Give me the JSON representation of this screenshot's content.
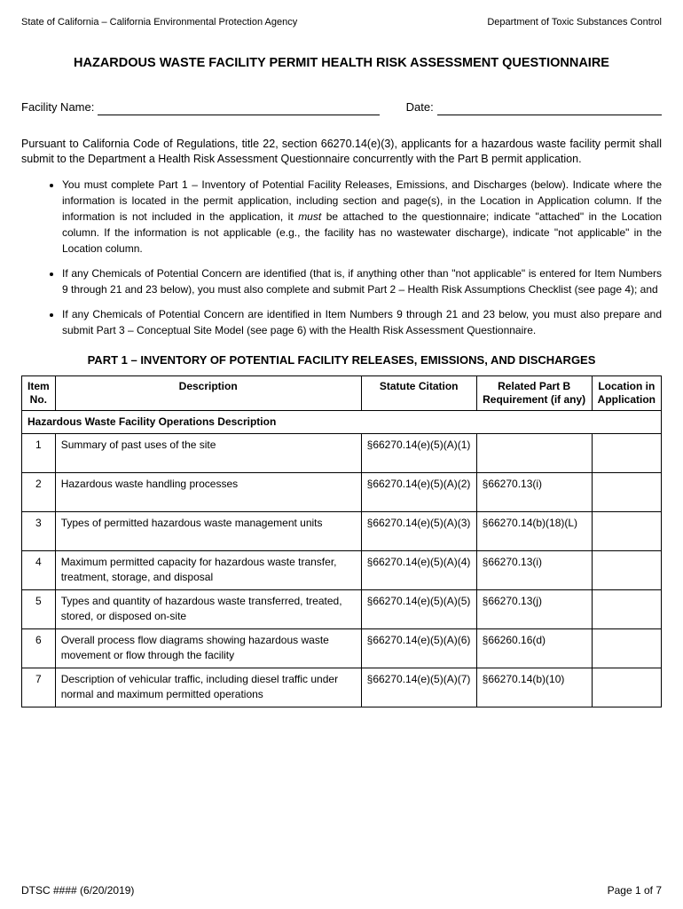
{
  "header": {
    "left": "State of California – California Environmental Protection Agency",
    "right": "Department of Toxic Substances Control"
  },
  "title": "HAZARDOUS WASTE FACILITY PERMIT HEALTH RISK ASSESSMENT QUESTIONNAIRE",
  "fields": {
    "facility_label": "Facility Name:",
    "date_label": "Date:"
  },
  "intro": "Pursuant to California Code of Regulations, title 22, section 66270.14(e)(3), applicants for a hazardous waste facility permit shall submit to the Department a Health Risk Assessment Questionnaire concurrently with the Part B permit application.",
  "bullets": [
    {
      "pre": "You must complete Part 1 – Inventory of Potential Facility Releases, Emissions, and Discharges (below). Indicate where the information is located in the permit application, including section and page(s), in the Location in Application column. If the information is not included in the application, it ",
      "italic": "must",
      "post": " be attached to the questionnaire; indicate \"attached\" in the Location column. If the information is not applicable (e.g., the facility has no wastewater discharge), indicate \"not applicable\" in the Location column."
    },
    {
      "pre": "If any Chemicals of Potential Concern are identified (that is, if anything other than \"not applicable\" is entered for Item Numbers 9 through 21 and 23 below), you must also complete and submit Part 2 – Health Risk Assumptions Checklist (see page 4); and",
      "italic": "",
      "post": ""
    },
    {
      "pre": "If any Chemicals of Potential Concern are identified in Item Numbers 9 through 21 and 23 below, you must also prepare and submit Part 3 – Conceptual Site Model (see page 6) with the Health Risk Assessment Questionnaire.",
      "italic": "",
      "post": ""
    }
  ],
  "part_title": "PART 1 – INVENTORY OF POTENTIAL FACILITY RELEASES, EMISSIONS, AND DISCHARGES",
  "table": {
    "columns": {
      "item": "Item\nNo.",
      "desc": "Description",
      "statute": "Statute Citation",
      "req": "Related Part B\nRequirement (if any)",
      "loc": "Location in\nApplication"
    },
    "section": "Hazardous Waste Facility Operations Description",
    "rows": [
      {
        "n": "1",
        "desc": "Summary of past uses of the site",
        "stat": "§66270.14(e)(5)(A)(1)",
        "req": "",
        "loc": ""
      },
      {
        "n": "2",
        "desc": "Hazardous waste handling processes",
        "stat": "§66270.14(e)(5)(A)(2)",
        "req": "§66270.13(i)",
        "loc": ""
      },
      {
        "n": "3",
        "desc": "Types of permitted hazardous waste management units",
        "stat": "§66270.14(e)(5)(A)(3)",
        "req": "§66270.14(b)(18)(L)",
        "loc": ""
      },
      {
        "n": "4",
        "desc": "Maximum permitted capacity for hazardous waste transfer, treatment, storage, and disposal",
        "stat": "§66270.14(e)(5)(A)(4)",
        "req": "§66270.13(i)",
        "loc": ""
      },
      {
        "n": "5",
        "desc": "Types and quantity of hazardous waste transferred, treated, stored, or disposed on-site",
        "stat": "§66270.14(e)(5)(A)(5)",
        "req": "§66270.13(j)",
        "loc": ""
      },
      {
        "n": "6",
        "desc": "Overall process flow diagrams showing hazardous waste movement or flow through the facility",
        "stat": "§66270.14(e)(5)(A)(6)",
        "req": "§66260.16(d)",
        "loc": ""
      },
      {
        "n": "7",
        "desc": "Description of vehicular traffic, including diesel traffic under normal and maximum permitted operations",
        "stat": "§66270.14(e)(5)(A)(7)",
        "req": "§66270.14(b)(10)",
        "loc": ""
      }
    ]
  },
  "footer": {
    "left": "DTSC #### (6/20/2019)",
    "right": "Page 1 of 7"
  }
}
